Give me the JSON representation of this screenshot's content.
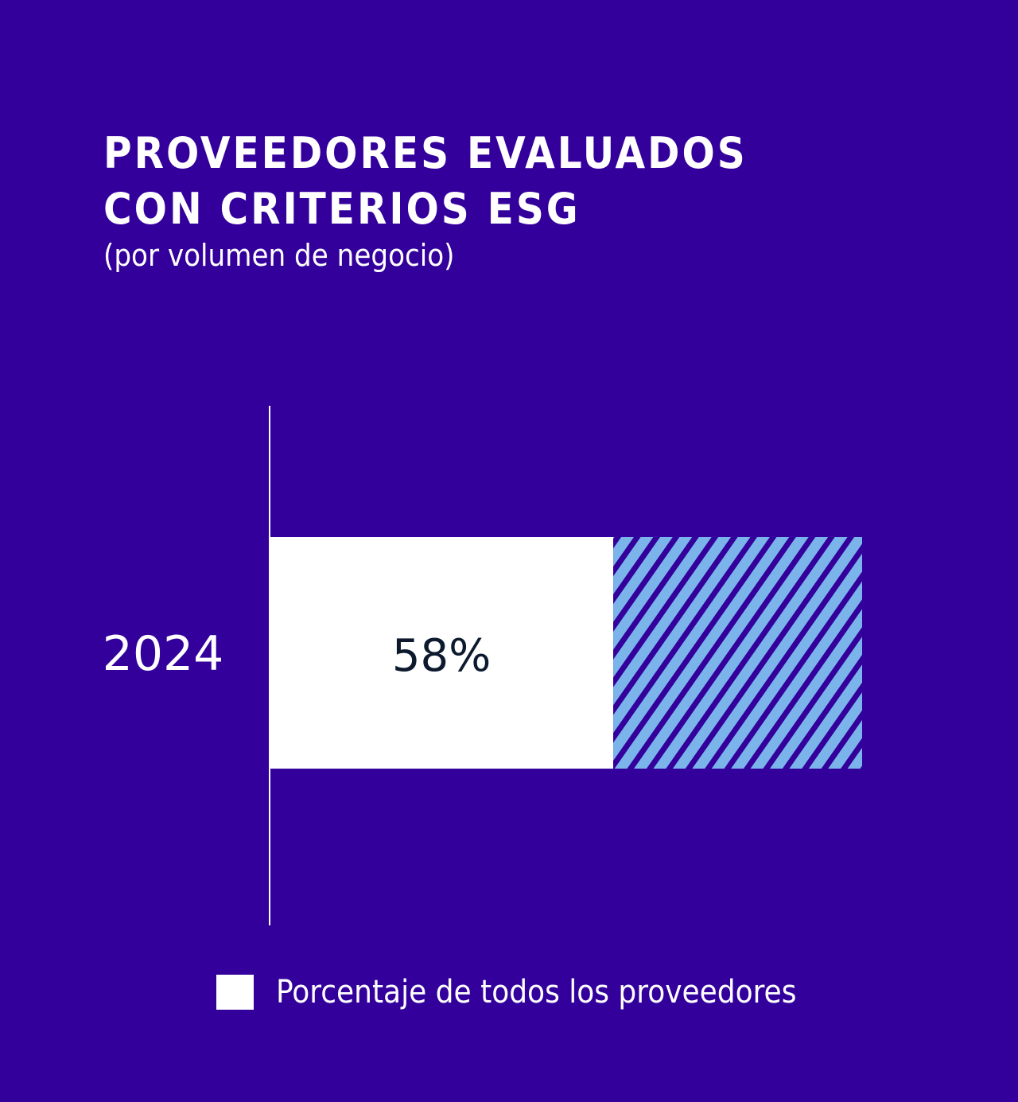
{
  "chart_data": {
    "type": "bar",
    "orientation": "horizontal",
    "stacked": true,
    "title": "PROVEEDORES EVALUADOS CON CRITERIOS ESG",
    "subtitle": "(por volumen de negocio)",
    "categories": [
      "2024"
    ],
    "series": [
      {
        "name": "Porcentaje de todos los proveedores",
        "values": [
          58
        ],
        "labels": [
          "58%"
        ],
        "color": "#ffffff"
      },
      {
        "values": [
          42
        ],
        "color": "#7ab4ea",
        "pattern": "diagonal-stripes"
      }
    ],
    "xlim": [
      0,
      100
    ],
    "grid": false,
    "legend_position": "bottom",
    "colors": {
      "background": "#33009c",
      "text": "#ffffff",
      "value_label": "#0d1a2e",
      "stripe_light": "#7ab4ea",
      "stripe_dark": "#33009c"
    }
  }
}
